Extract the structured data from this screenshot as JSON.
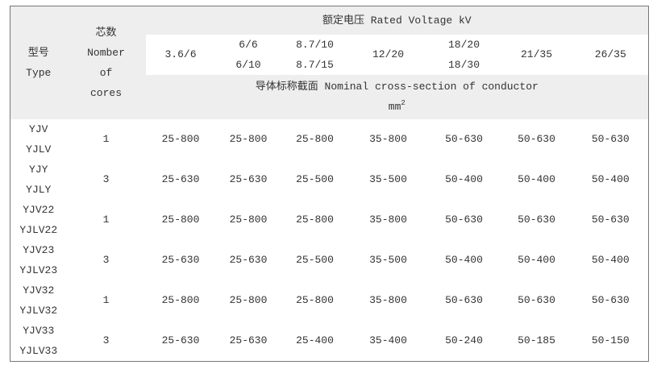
{
  "header": {
    "type_label_cn": "型号",
    "type_label_en": "Type",
    "cores_label_cn": "芯数",
    "cores_label_en_1": "Nomber",
    "cores_label_en_2": "of",
    "cores_label_en_3": "cores",
    "rated_voltage": "额定电压 Rated Voltage kV",
    "voltages": [
      {
        "line1": "3.6/6",
        "line2": ""
      },
      {
        "line1": "6/6",
        "line2": "6/10"
      },
      {
        "line1": "8.7/10",
        "line2": "8.7/15"
      },
      {
        "line1": "12/20",
        "line2": ""
      },
      {
        "line1": "18/20",
        "line2": "18/30"
      },
      {
        "line1": "21/35",
        "line2": ""
      },
      {
        "line1": "26/35",
        "line2": ""
      }
    ],
    "cross_section": "导体标称截面 Nominal cross-section of conductor",
    "unit": "mm",
    "unit_exp": "2"
  },
  "rows": [
    {
      "type1": "YJV",
      "type2": "YJLV",
      "cores": "1",
      "values": [
        "25-800",
        "25-800",
        "25-800",
        "35-800",
        "50-630",
        "50-630",
        "50-630"
      ]
    },
    {
      "type1": "YJY",
      "type2": "YJLY",
      "cores": "3",
      "values": [
        "25-630",
        "25-630",
        "25-500",
        "35-500",
        "50-400",
        "50-400",
        "50-400"
      ]
    },
    {
      "type1": "YJV22",
      "type2": "YJLV22",
      "cores": "1",
      "values": [
        "25-800",
        "25-800",
        "25-800",
        "35-800",
        "50-630",
        "50-630",
        "50-630"
      ]
    },
    {
      "type1": "YJV23",
      "type2": "YJLV23",
      "cores": "3",
      "values": [
        "25-630",
        "25-630",
        "25-500",
        "35-500",
        "50-400",
        "50-400",
        "50-400"
      ]
    },
    {
      "type1": "YJV32",
      "type2": "YJLV32",
      "cores": "1",
      "values": [
        "25-800",
        "25-800",
        "25-800",
        "35-800",
        "50-630",
        "50-630",
        "50-630"
      ]
    },
    {
      "type1": "YJV33",
      "type2": "YJLV33",
      "cores": "3",
      "values": [
        "25-630",
        "25-630",
        "25-400",
        "35-400",
        "50-240",
        "50-185",
        "50-150"
      ]
    }
  ]
}
